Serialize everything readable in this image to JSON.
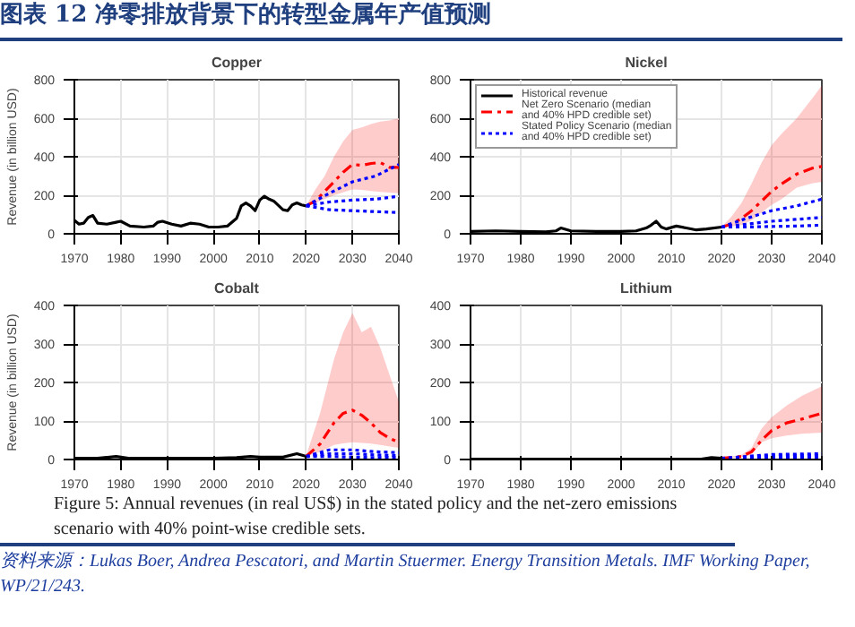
{
  "chart_data": [
    {
      "type": "other",
      "title": "图表 12    净零排放背景下的转型金属年产值预测"
    },
    {
      "type": "line",
      "title": "Copper",
      "ylabel": "Revenue (in billion USD)",
      "xlim": [
        1970,
        2040
      ],
      "xticks": [
        1970,
        1980,
        1990,
        2000,
        2010,
        2020,
        2030,
        2040
      ],
      "ylim": [
        0,
        800
      ],
      "yticks": [
        0,
        200,
        400,
        600,
        800
      ],
      "grid": true,
      "legend": false,
      "series": [
        {
          "color": "#000000",
          "line_style": "solid",
          "x": [
            1970,
            1971,
            1972,
            1973,
            1974,
            1975,
            1977,
            1979,
            1980,
            1982,
            1985,
            1987,
            1988,
            1989,
            1991,
            1993,
            1995,
            1997,
            1999,
            2001,
            2003,
            2005,
            2006,
            2007,
            2008,
            2009,
            2010,
            2011,
            2012,
            2013,
            2015,
            2016,
            2017,
            2018,
            2019,
            2020
          ],
          "values": [
            70,
            50,
            55,
            85,
            95,
            55,
            50,
            60,
            65,
            40,
            35,
            40,
            60,
            65,
            50,
            40,
            55,
            50,
            35,
            35,
            40,
            80,
            145,
            160,
            145,
            120,
            175,
            195,
            180,
            170,
            125,
            120,
            150,
            160,
            150,
            145
          ]
        },
        {
          "color": "#ff0000",
          "line_style": "dashed",
          "x": [
            2020,
            2022,
            2024,
            2026,
            2028,
            2030,
            2032,
            2034,
            2036,
            2038,
            2040
          ],
          "values": [
            145,
            170,
            220,
            270,
            320,
            360,
            355,
            365,
            370,
            345,
            345
          ],
          "lower": [
            145,
            160,
            180,
            200,
            215,
            230,
            228,
            222,
            218,
            214,
            210
          ],
          "upper": [
            145,
            230,
            300,
            400,
            480,
            540,
            552,
            570,
            582,
            588,
            600
          ]
        },
        {
          "color": "#0000ff",
          "line_style": "dotted",
          "x": [
            2020,
            2025,
            2030,
            2035,
            2040
          ],
          "values": [
            145,
            165,
            175,
            180,
            195
          ]
        },
        {
          "color": "#0000ff",
          "line_style": "dotted",
          "x": [
            2020,
            2025,
            2030,
            2035,
            2040
          ],
          "values": [
            145,
            210,
            270,
            300,
            360
          ]
        },
        {
          "color": "#0000ff",
          "line_style": "dotted",
          "x": [
            2020,
            2025,
            2030,
            2035,
            2040
          ],
          "values": [
            145,
            125,
            120,
            115,
            110
          ]
        }
      ]
    },
    {
      "type": "line",
      "title": "Nickel",
      "xlim": [
        1970,
        2040
      ],
      "xticks": [
        1970,
        1980,
        1990,
        2000,
        2010,
        2020,
        2030,
        2040
      ],
      "ylim": [
        0,
        800
      ],
      "yticks": [
        0,
        200,
        400,
        600,
        800
      ],
      "grid": true,
      "legend": "top left",
      "series": [
        {
          "name": "Historical revenue",
          "color": "#000000",
          "line_style": "solid",
          "x": [
            1970,
            1975,
            1980,
            1985,
            1987,
            1988,
            1990,
            1995,
            2000,
            2003,
            2005,
            2006,
            2007,
            2008,
            2009,
            2011,
            2013,
            2015,
            2017,
            2020
          ],
          "values": [
            12,
            15,
            12,
            10,
            15,
            30,
            15,
            12,
            12,
            15,
            30,
            45,
            65,
            35,
            25,
            40,
            30,
            20,
            25,
            35
          ]
        },
        {
          "name": "Net Zero Scenario (median and 40% HPD credible set)",
          "color": "#ff0000",
          "line_style": "dashed",
          "x": [
            2020,
            2022,
            2024,
            2026,
            2028,
            2030,
            2032,
            2035,
            2038,
            2040
          ],
          "values": [
            35,
            50,
            80,
            120,
            170,
            220,
            260,
            310,
            340,
            350
          ],
          "lower": [
            35,
            38,
            45,
            70,
            110,
            150,
            180,
            240,
            262,
            270
          ],
          "upper": [
            35,
            90,
            160,
            260,
            370,
            460,
            520,
            600,
            700,
            770
          ]
        },
        {
          "name": "Stated Policy Scenario (median and 40% HPD credible set)",
          "color": "#0000ff",
          "line_style": "dotted",
          "x": [
            2020,
            2025,
            2030,
            2035,
            2040
          ],
          "values": [
            35,
            50,
            65,
            75,
            85
          ]
        },
        {
          "color": "#0000ff",
          "line_style": "dotted",
          "x": [
            2020,
            2025,
            2030,
            2035,
            2040
          ],
          "values": [
            35,
            80,
            120,
            145,
            180
          ]
        },
        {
          "color": "#0000ff",
          "line_style": "dotted",
          "x": [
            2020,
            2025,
            2030,
            2035,
            2040
          ],
          "values": [
            35,
            35,
            38,
            40,
            45
          ]
        }
      ]
    },
    {
      "type": "line",
      "title": "Cobalt",
      "ylabel": "Revenue (in billion USD)",
      "xlim": [
        1970,
        2040
      ],
      "xticks": [
        1970,
        1980,
        1990,
        2000,
        2010,
        2020,
        2030,
        2040
      ],
      "ylim": [
        0,
        400
      ],
      "yticks": [
        0,
        100,
        200,
        300,
        400
      ],
      "grid": true,
      "legend": false,
      "series": [
        {
          "color": "#000000",
          "line_style": "solid",
          "x": [
            1970,
            1975,
            1979,
            1982,
            1990,
            2000,
            2005,
            2008,
            2010,
            2015,
            2018,
            2020
          ],
          "values": [
            3,
            3,
            8,
            3,
            3,
            3,
            5,
            8,
            6,
            6,
            15,
            8
          ]
        },
        {
          "color": "#ff0000",
          "line_style": "dashed",
          "x": [
            2020,
            2023,
            2026,
            2028,
            2030,
            2032,
            2034,
            2036,
            2038,
            2040
          ],
          "values": [
            8,
            40,
            95,
            120,
            128,
            115,
            95,
            70,
            55,
            45
          ],
          "lower": [
            8,
            20,
            38,
            42,
            45,
            43,
            41,
            38,
            34,
            30
          ],
          "upper": [
            10,
            120,
            260,
            330,
            380,
            330,
            345,
            290,
            220,
            150
          ]
        },
        {
          "color": "#0000ff",
          "line_style": "dotted",
          "x": [
            2020,
            2025,
            2030,
            2035,
            2040
          ],
          "values": [
            8,
            15,
            15,
            12,
            10
          ]
        },
        {
          "color": "#0000ff",
          "line_style": "dotted",
          "x": [
            2020,
            2025,
            2030,
            2035,
            2040
          ],
          "values": [
            8,
            25,
            25,
            20,
            18
          ]
        },
        {
          "color": "#0000ff",
          "line_style": "dotted",
          "x": [
            2020,
            2025,
            2030,
            2035,
            2040
          ],
          "values": [
            8,
            8,
            6,
            5,
            5
          ]
        }
      ]
    },
    {
      "type": "line",
      "title": "Lithium",
      "xlim": [
        1970,
        2040
      ],
      "xticks": [
        1970,
        1980,
        1990,
        2000,
        2010,
        2020,
        2030,
        2040
      ],
      "ylim": [
        0,
        400
      ],
      "yticks": [
        0,
        100,
        200,
        300,
        400
      ],
      "grid": true,
      "legend": false,
      "series": [
        {
          "color": "#000000",
          "line_style": "solid",
          "x": [
            1970,
            1990,
            2010,
            2016,
            2018,
            2020
          ],
          "values": [
            1,
            1,
            1,
            1,
            5,
            3
          ]
        },
        {
          "color": "#ff0000",
          "line_style": "dashed",
          "x": [
            2020,
            2024,
            2026,
            2028,
            2030,
            2033,
            2036,
            2040
          ],
          "values": [
            3,
            8,
            20,
            50,
            75,
            95,
            105,
            120
          ],
          "lower": [
            3,
            6,
            12,
            45,
            55,
            62,
            67,
            70
          ],
          "upper": [
            3,
            12,
            30,
            80,
            110,
            140,
            165,
            190
          ]
        },
        {
          "color": "#0000ff",
          "line_style": "dotted",
          "x": [
            2020,
            2025,
            2030,
            2035,
            2040
          ],
          "values": [
            3,
            6,
            9,
            10,
            10
          ]
        },
        {
          "color": "#0000ff",
          "line_style": "dotted",
          "x": [
            2020,
            2030,
            2040
          ],
          "values": [
            3,
            13,
            15
          ]
        },
        {
          "color": "#0000ff",
          "line_style": "dotted",
          "x": [
            2020,
            2030,
            2040
          ],
          "values": [
            3,
            5,
            6
          ]
        }
      ]
    },
    {
      "type": "other",
      "annotations": [
        "Figure 5: Annual revenues (in real US$) in the stated policy and the net-zero emissions scenario with 40% point-wise credible sets.",
        "资料来源：Lukas Boer, Andrea Pescatori, and Martin Stuermer. Energy Transition Metals. IMF Working Paper, WP/21/243."
      ]
    }
  ]
}
